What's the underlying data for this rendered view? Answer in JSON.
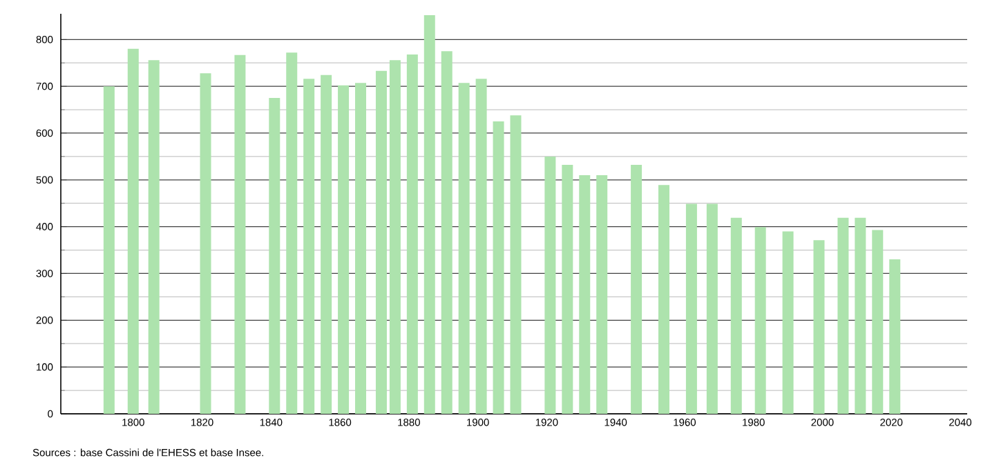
{
  "chart_data": {
    "type": "bar",
    "x": [
      1793,
      1800,
      1806,
      1821,
      1831,
      1841,
      1846,
      1851,
      1856,
      1861,
      1866,
      1872,
      1876,
      1881,
      1886,
      1891,
      1896,
      1901,
      1906,
      1911,
      1921,
      1926,
      1931,
      1936,
      1946,
      1954,
      1962,
      1968,
      1975,
      1982,
      1990,
      1999,
      2006,
      2011,
      2016,
      2021
    ],
    "values": [
      700,
      780,
      756,
      728,
      767,
      675,
      772,
      716,
      724,
      702,
      707,
      733,
      756,
      768,
      852,
      775,
      707,
      716,
      625,
      638,
      550,
      532,
      510,
      510,
      532,
      489,
      449,
      449,
      419,
      399,
      390,
      371,
      419,
      419,
      393,
      330
    ],
    "color": "#ade3ad",
    "xlim": [
      1779,
      2042
    ],
    "xticks": [
      1800,
      1820,
      1840,
      1860,
      1880,
      1900,
      1920,
      1940,
      1960,
      1980,
      2000,
      2020,
      2040
    ],
    "ylim": [
      0,
      855
    ],
    "yticks": [
      0,
      100,
      200,
      300,
      400,
      500,
      600,
      700,
      800
    ],
    "grid": "y",
    "annotations": [
      "Sources : base Cassini de l'EHESS et base Insee."
    ]
  }
}
